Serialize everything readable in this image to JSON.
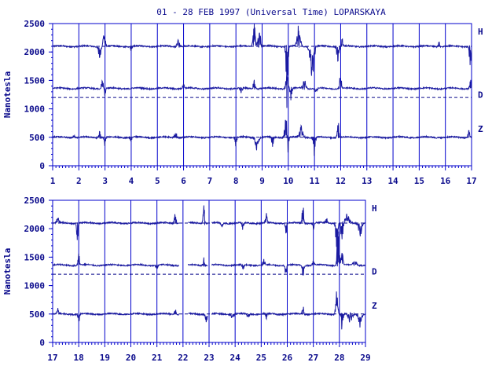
{
  "chart_data": [
    {
      "type": "line",
      "title": "01 - 28 FEB 1997 (Universal Time) LOPARSKAYA",
      "ylabel": "Nanotesla",
      "ylim": [
        0,
        2500
      ],
      "yticks": [
        0,
        500,
        1000,
        1500,
        2000,
        2500
      ],
      "xlim": [
        1,
        17
      ],
      "xticks": [
        "1",
        "2",
        "3",
        "4",
        "5",
        "6",
        "7",
        "8",
        "9",
        "10",
        "11",
        "12",
        "13",
        "14",
        "15",
        "16",
        "17"
      ],
      "grid": "vertical at each day",
      "series": [
        {
          "name": "H",
          "baseline": 2100,
          "events": [
            [
              2.8,
              200,
              0.06,
              -1
            ],
            [
              2.95,
              180,
              0.05,
              1
            ],
            [
              3.0,
              100,
              0.05,
              1
            ],
            [
              4.0,
              90,
              0.04,
              -1
            ],
            [
              5.8,
              110,
              0.08,
              1
            ],
            [
              8.7,
              380,
              0.06,
              1
            ],
            [
              8.9,
              220,
              0.08,
              1
            ],
            [
              9.95,
              900,
              0.05,
              -1
            ],
            [
              10.4,
              320,
              0.08,
              1
            ],
            [
              10.9,
              550,
              0.1,
              -1
            ],
            [
              11.9,
              260,
              0.06,
              -1
            ],
            [
              12.05,
              140,
              0.04,
              1
            ],
            [
              15.75,
              150,
              0.03,
              1
            ],
            [
              16.95,
              300,
              0.05,
              -1
            ]
          ]
        },
        {
          "name": "D",
          "baseline": 1360,
          "events": [
            [
              2.9,
              180,
              0.05,
              1
            ],
            [
              3.0,
              120,
              0.04,
              -1
            ],
            [
              6.0,
              70,
              0.05,
              1
            ],
            [
              8.2,
              90,
              0.05,
              -1
            ],
            [
              8.7,
              140,
              0.05,
              1
            ],
            [
              9.95,
              300,
              0.06,
              1
            ],
            [
              10.1,
              200,
              0.05,
              -1
            ],
            [
              10.6,
              140,
              0.1,
              1
            ],
            [
              11.05,
              90,
              0.06,
              -1
            ],
            [
              12.0,
              250,
              0.05,
              1
            ],
            [
              16.95,
              150,
              0.04,
              1
            ]
          ]
        },
        {
          "name": "Z",
          "baseline": 500,
          "events": [
            [
              1.8,
              60,
              0.05,
              1
            ],
            [
              2.8,
              120,
              0.05,
              1
            ],
            [
              3.0,
              150,
              0.04,
              -1
            ],
            [
              4.0,
              100,
              0.04,
              -1
            ],
            [
              5.7,
              90,
              0.06,
              1
            ],
            [
              8.0,
              200,
              0.04,
              -1
            ],
            [
              8.8,
              250,
              0.08,
              -1
            ],
            [
              9.4,
              150,
              0.05,
              -1
            ],
            [
              9.9,
              350,
              0.06,
              1
            ],
            [
              10.0,
              400,
              0.03,
              -1
            ],
            [
              10.5,
              200,
              0.1,
              1
            ],
            [
              11.0,
              300,
              0.05,
              -1
            ],
            [
              11.9,
              300,
              0.04,
              1
            ],
            [
              16.9,
              120,
              0.05,
              1
            ]
          ]
        }
      ],
      "reference_lines": [
        {
          "y": 2100,
          "style": "dashed"
        },
        {
          "y": 1200,
          "style": "dashed"
        },
        {
          "y": 500,
          "style": "dashed"
        }
      ]
    },
    {
      "type": "line",
      "title": "",
      "ylabel": "Nanotesla",
      "ylim": [
        0,
        2500
      ],
      "yticks": [
        0,
        500,
        1000,
        1500,
        2000,
        2500
      ],
      "xlim": [
        17,
        29
      ],
      "xticks": [
        "17",
        "18",
        "19",
        "20",
        "21",
        "22",
        "23",
        "24",
        "25",
        "26",
        "27",
        "28",
        "29"
      ],
      "grid": "vertical at each day",
      "series": [
        {
          "name": "H",
          "baseline": 2100,
          "events": [
            [
              17.2,
              100,
              0.05,
              1
            ],
            [
              17.95,
              300,
              0.04,
              -1
            ],
            [
              21.7,
              250,
              0.04,
              1
            ],
            [
              22.8,
              350,
              0.04,
              1
            ],
            [
              23.0,
              150,
              0.04,
              -1
            ],
            [
              23.5,
              100,
              0.05,
              -1
            ],
            [
              24.3,
              150,
              0.04,
              -1
            ],
            [
              25.2,
              150,
              0.05,
              1
            ],
            [
              25.95,
              200,
              0.04,
              -1
            ],
            [
              26.6,
              350,
              0.04,
              1
            ],
            [
              27.0,
              150,
              0.04,
              -1
            ],
            [
              27.5,
              100,
              0.05,
              1
            ],
            [
              27.9,
              450,
              0.05,
              -1
            ],
            [
              28.1,
              350,
              0.05,
              -1
            ],
            [
              28.3,
              150,
              0.1,
              1
            ],
            [
              28.8,
              200,
              0.08,
              -1
            ]
          ]
        },
        {
          "name": "D",
          "baseline": 1360,
          "events": [
            [
              18.0,
              180,
              0.04,
              1
            ],
            [
              21.0,
              60,
              0.05,
              -1
            ],
            [
              22.8,
              150,
              0.05,
              1
            ],
            [
              23.0,
              120,
              0.04,
              -1
            ],
            [
              24.3,
              80,
              0.05,
              -1
            ],
            [
              25.1,
              90,
              0.05,
              1
            ],
            [
              25.95,
              200,
              0.04,
              -1
            ],
            [
              26.6,
              180,
              0.05,
              -1
            ],
            [
              27.0,
              80,
              0.05,
              1
            ],
            [
              27.95,
              700,
              0.05,
              1
            ],
            [
              28.1,
              300,
              0.05,
              1
            ],
            [
              28.6,
              80,
              0.1,
              1
            ]
          ]
        },
        {
          "name": "Z",
          "baseline": 500,
          "events": [
            [
              17.2,
              90,
              0.05,
              1
            ],
            [
              18.0,
              150,
              0.04,
              -1
            ],
            [
              21.7,
              100,
              0.04,
              1
            ],
            [
              22.9,
              140,
              0.05,
              -1
            ],
            [
              23.9,
              90,
              0.05,
              -1
            ],
            [
              24.5,
              80,
              0.05,
              -1
            ],
            [
              25.2,
              110,
              0.04,
              -1
            ],
            [
              26.6,
              150,
              0.04,
              1
            ],
            [
              27.9,
              500,
              0.05,
              1
            ],
            [
              28.1,
              250,
              0.05,
              -1
            ],
            [
              28.4,
              150,
              0.1,
              -1
            ],
            [
              28.8,
              180,
              0.08,
              -1
            ]
          ]
        }
      ],
      "gaps": [
        [
          21.85,
          22.2
        ],
        [
          22.95,
          23.1
        ]
      ],
      "reference_lines": [
        {
          "y": 2100,
          "style": "dashed"
        },
        {
          "y": 1200,
          "style": "dashed"
        },
        {
          "y": 500,
          "style": "dashed"
        }
      ]
    }
  ],
  "colors": {
    "ink": "#0a0a8c",
    "grid": "#0000cc",
    "trace": "#1a1aa0"
  }
}
